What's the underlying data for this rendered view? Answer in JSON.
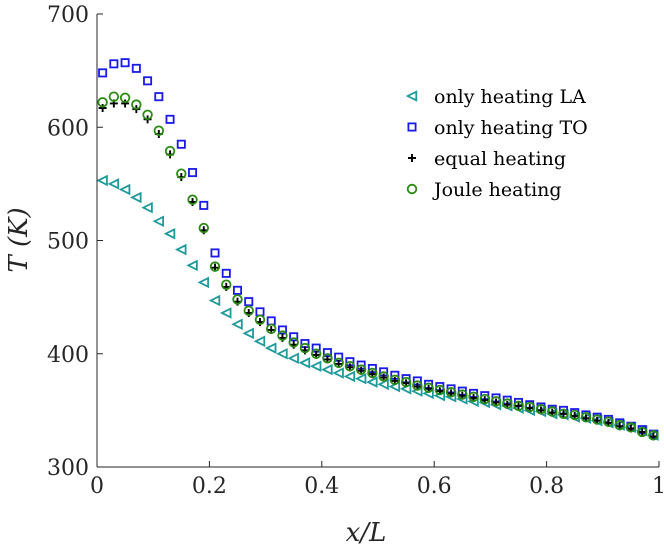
{
  "chart_data": {
    "type": "scatter",
    "xlabel": "x/L",
    "ylabel": "T (K)",
    "xlim": [
      0,
      1
    ],
    "ylim": [
      300,
      700
    ],
    "x_ticks": [
      0,
      0.2,
      0.4,
      0.6,
      0.8,
      1
    ],
    "x_tick_labels": [
      "0",
      "0.2",
      "0.4",
      "0.6",
      "0.8",
      "1"
    ],
    "y_ticks": [
      300,
      400,
      500,
      600,
      700
    ],
    "y_tick_labels": [
      "300",
      "400",
      "500",
      "600",
      "700"
    ],
    "legend_position": "top-right",
    "x": [
      0.01,
      0.03,
      0.05,
      0.07,
      0.09,
      0.11,
      0.13,
      0.15,
      0.17,
      0.19,
      0.21,
      0.23,
      0.25,
      0.27,
      0.29,
      0.31,
      0.33,
      0.35,
      0.37,
      0.39,
      0.41,
      0.43,
      0.45,
      0.47,
      0.49,
      0.51,
      0.53,
      0.55,
      0.57,
      0.59,
      0.61,
      0.63,
      0.65,
      0.67,
      0.69,
      0.71,
      0.73,
      0.75,
      0.77,
      0.79,
      0.81,
      0.83,
      0.85,
      0.87,
      0.89,
      0.91,
      0.93,
      0.95,
      0.97,
      0.99
    ],
    "series": [
      {
        "name": "only heating LA",
        "marker": "triangle-left",
        "color": "#1f9a9a",
        "values": [
          553,
          550,
          545,
          538,
          529,
          517,
          506,
          492,
          478,
          463,
          447,
          436,
          426,
          418,
          411,
          405,
          400,
          396,
          392,
          389,
          386,
          383,
          380,
          378,
          375,
          373,
          371,
          369,
          367,
          365,
          363,
          362,
          360,
          358,
          357,
          355,
          354,
          352,
          350,
          349,
          347,
          346,
          344,
          343,
          341,
          339,
          337,
          335,
          332,
          328
        ]
      },
      {
        "name": "only heating TO",
        "marker": "square",
        "color": "#1a1ae6",
        "values": [
          648,
          656,
          657,
          652,
          641,
          627,
          607,
          585,
          560,
          531,
          489,
          471,
          456,
          446,
          437,
          429,
          421,
          415,
          409,
          405,
          401,
          397,
          393,
          390,
          387,
          384,
          381,
          378,
          376,
          373,
          371,
          369,
          367,
          365,
          363,
          361,
          359,
          357,
          355,
          353,
          351,
          350,
          348,
          346,
          344,
          342,
          339,
          336,
          333,
          329
        ]
      },
      {
        "name": "equal heating",
        "marker": "plus",
        "color": "#000000",
        "values": [
          617,
          621,
          621,
          616,
          607,
          594,
          576,
          556,
          534,
          509,
          476,
          459,
          446,
          436,
          428,
          421,
          414,
          408,
          403,
          399,
          395,
          391,
          388,
          385,
          382,
          379,
          376,
          374,
          371,
          369,
          367,
          365,
          363,
          361,
          359,
          357,
          355,
          354,
          352,
          350,
          348,
          347,
          345,
          343,
          341,
          339,
          336,
          334,
          331,
          327
        ]
      },
      {
        "name": "Joule heating",
        "marker": "circle",
        "color": "#2a8a12",
        "values": [
          622,
          627,
          626,
          620,
          611,
          597,
          579,
          559,
          536,
          511,
          477,
          461,
          448,
          438,
          430,
          422,
          416,
          410,
          405,
          400,
          396,
          392,
          389,
          386,
          383,
          380,
          377,
          375,
          372,
          370,
          368,
          366,
          364,
          362,
          360,
          358,
          356,
          354,
          353,
          351,
          349,
          347,
          346,
          344,
          342,
          340,
          337,
          335,
          331,
          328
        ]
      }
    ]
  }
}
